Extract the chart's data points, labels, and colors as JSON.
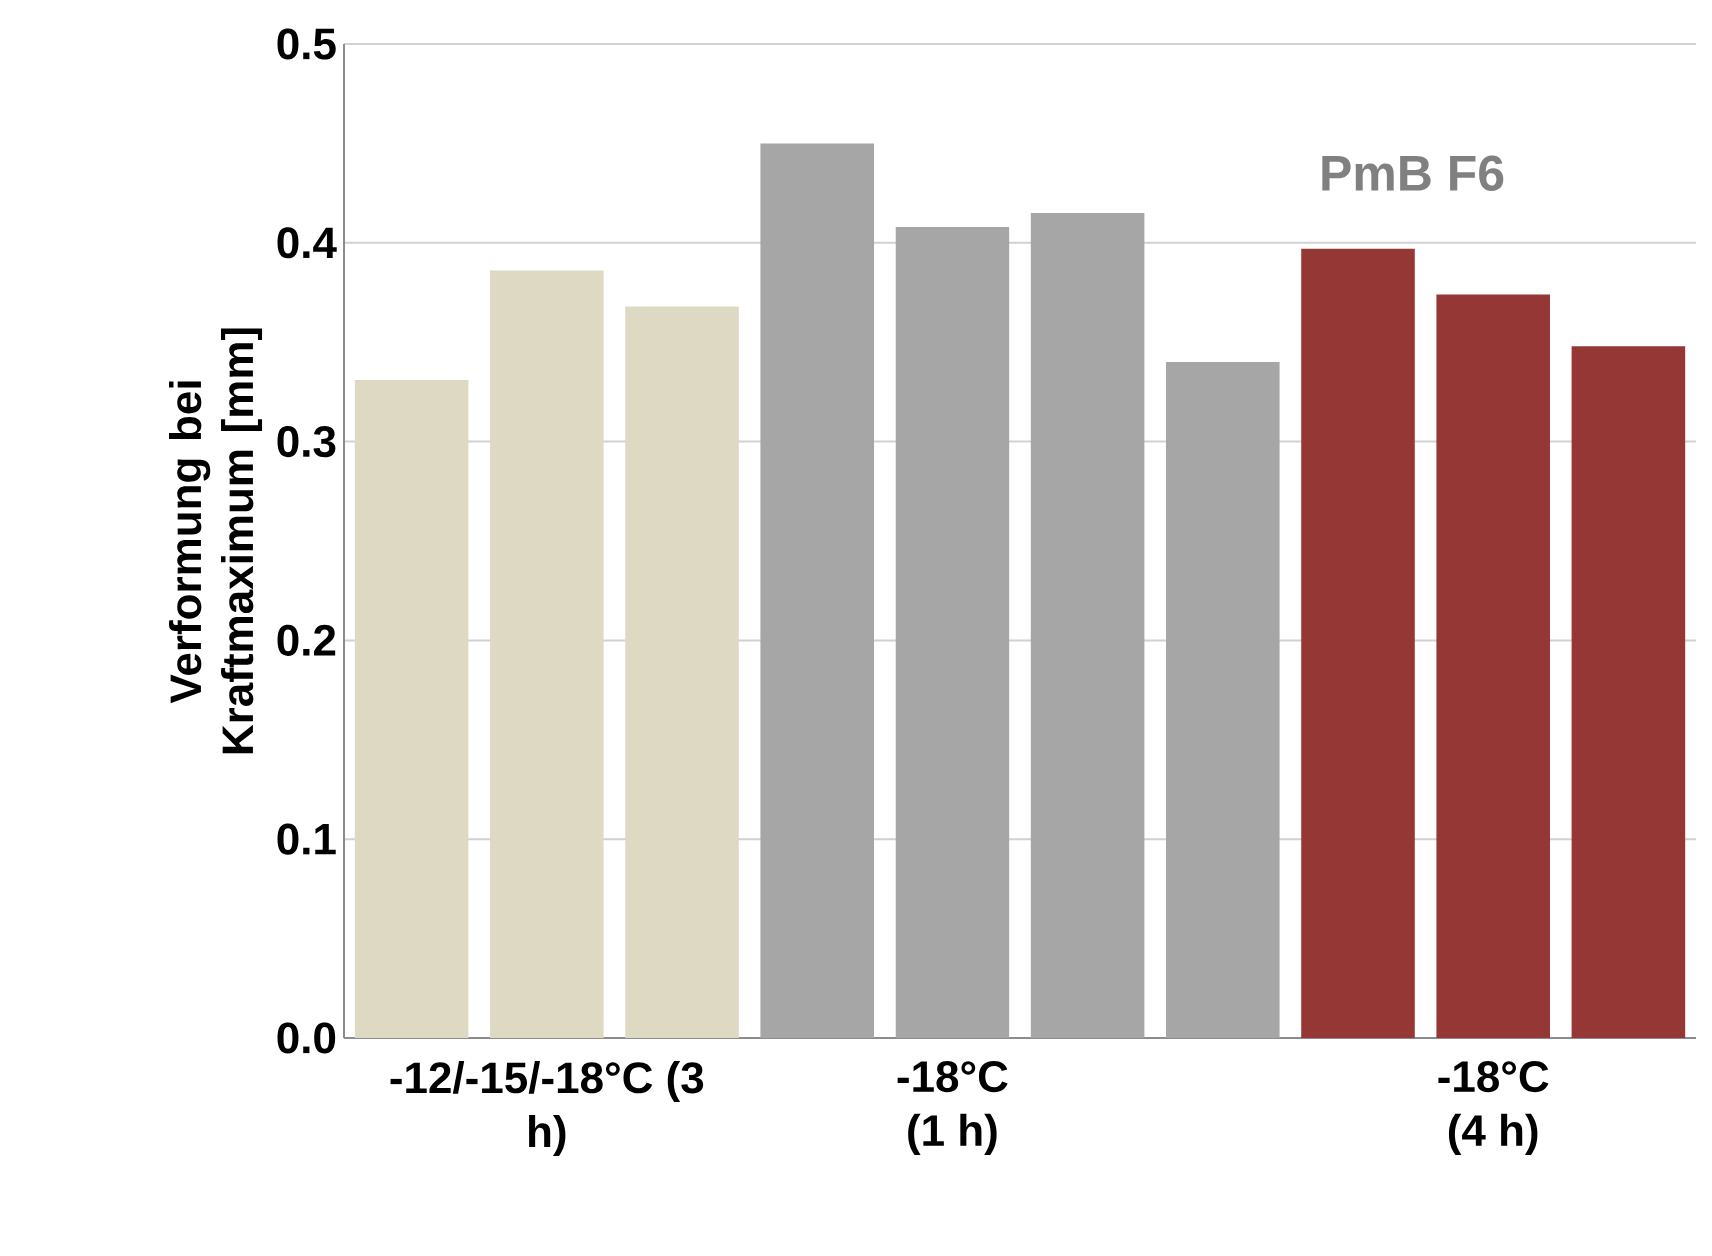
{
  "chart_data": {
    "type": "bar",
    "ylabel": "Verformung bei Kraftmaximum [mm]",
    "categories": [
      null,
      "-12/-15/-18°C (3 h)",
      null,
      null,
      "-18°C (1 h)",
      null,
      null,
      null,
      "-18°C (4 h)",
      null
    ],
    "values": [
      0.331,
      0.386,
      0.368,
      0.45,
      0.408,
      0.415,
      0.34,
      0.397,
      0.374,
      0.348
    ],
    "colors": [
      "#ddd9c3",
      "#ddd9c3",
      "#ddd9c3",
      "#a6a6a6",
      "#a6a6a6",
      "#a6a6a6",
      "#a6a6a6",
      "#953735",
      "#953735",
      "#953735"
    ],
    "ylim": [
      0,
      0.5
    ],
    "yticks": [
      {
        "value": 0,
        "label": "0.0"
      },
      {
        "value": 0.1,
        "label": "0.1"
      },
      {
        "value": 0.2,
        "label": "0.2"
      },
      {
        "value": 0.3,
        "label": "0.3"
      },
      {
        "value": 0.4,
        "label": "0.4"
      },
      {
        "value": 0.5,
        "label": "0.5"
      }
    ],
    "grid": "y",
    "annotations": [
      "PmB F6"
    ]
  }
}
